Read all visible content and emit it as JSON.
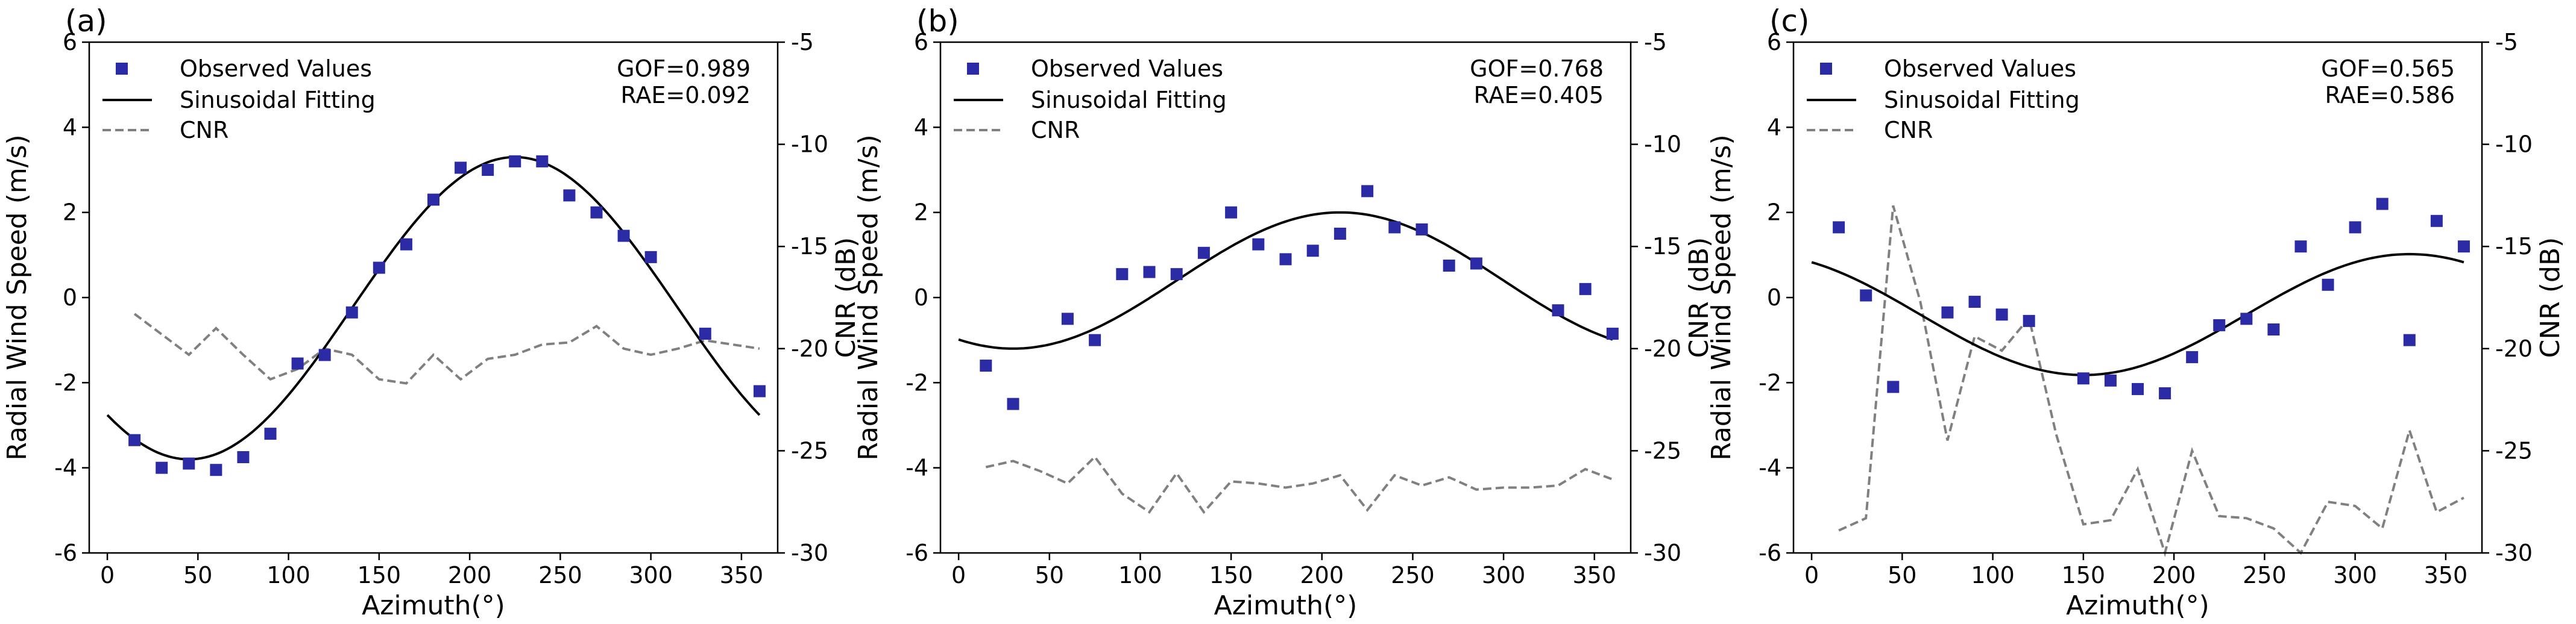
{
  "chart_data": [
    {
      "panel_label": "(a)",
      "type": "scatter",
      "xlabel": "Azimuth(°)",
      "ylabel": "Radial Wind Speed (m/s)",
      "y2label": "CNR (dB)",
      "xlim": [
        -10,
        370
      ],
      "ylim": [
        -6,
        6
      ],
      "y2lim": [
        -30,
        -5
      ],
      "xticks": [
        0,
        50,
        100,
        150,
        200,
        250,
        300,
        350
      ],
      "yticks": [
        -6,
        -4,
        -2,
        0,
        2,
        4,
        6
      ],
      "y2ticks": [
        -30,
        -25,
        -20,
        -15,
        -10,
        -5
      ],
      "legend": {
        "observed": "Observed Values",
        "fit": "Sinusoidal Fitting",
        "cnr": "CNR"
      },
      "stats": {
        "gof": "GOF=0.989",
        "rae": "RAE=0.092"
      },
      "observed": {
        "x": [
          15,
          30,
          45,
          60,
          75,
          90,
          105,
          120,
          135,
          150,
          165,
          180,
          195,
          210,
          225,
          240,
          255,
          270,
          285,
          300,
          330,
          360
        ],
        "y": [
          -3.35,
          -4.0,
          -3.9,
          -4.05,
          -3.75,
          -3.2,
          -1.55,
          -1.35,
          -0.35,
          0.7,
          1.25,
          2.3,
          3.05,
          3.0,
          3.2,
          3.2,
          2.4,
          2.0,
          1.45,
          0.95,
          -0.85,
          -2.2
        ]
      },
      "fit": {
        "offset": -0.25,
        "amplitude": 3.55,
        "peak_azimuth": 225
      },
      "cnr": {
        "x": [
          15,
          30,
          45,
          60,
          75,
          90,
          105,
          120,
          135,
          150,
          165,
          180,
          195,
          210,
          225,
          240,
          255,
          270,
          285,
          300,
          315,
          330,
          345,
          360
        ],
        "y": [
          -18.3,
          -19.3,
          -20.3,
          -19.0,
          -20.3,
          -21.5,
          -21.0,
          -20.0,
          -20.3,
          -21.5,
          -21.7,
          -20.3,
          -21.5,
          -20.5,
          -20.3,
          -19.8,
          -19.7,
          -18.9,
          -20.0,
          -20.3,
          -20.0,
          -19.6,
          -19.8,
          -20.0
        ]
      }
    },
    {
      "panel_label": "(b)",
      "type": "scatter",
      "xlabel": "Azimuth(°)",
      "ylabel": "Radial Wind Speed (m/s)",
      "y2label": "CNR (dB)",
      "xlim": [
        -10,
        370
      ],
      "ylim": [
        -6,
        6
      ],
      "y2lim": [
        -30,
        -5
      ],
      "xticks": [
        0,
        50,
        100,
        150,
        200,
        250,
        300,
        350
      ],
      "yticks": [
        -6,
        -4,
        -2,
        0,
        2,
        4,
        6
      ],
      "y2ticks": [
        -30,
        -25,
        -20,
        -15,
        -10,
        -5
      ],
      "legend": {
        "observed": "Observed Values",
        "fit": "Sinusoidal Fitting",
        "cnr": "CNR"
      },
      "stats": {
        "gof": "GOF=0.768",
        "rae": "RAE=0.405"
      },
      "observed": {
        "x": [
          15,
          30,
          60,
          75,
          90,
          105,
          120,
          135,
          150,
          165,
          180,
          195,
          210,
          225,
          240,
          255,
          270,
          285,
          330,
          345,
          360
        ],
        "y": [
          -1.6,
          -2.5,
          -0.5,
          -1.0,
          0.55,
          0.6,
          0.55,
          1.05,
          2.0,
          1.25,
          0.9,
          1.1,
          1.5,
          2.5,
          1.65,
          1.6,
          0.75,
          0.8,
          -0.3,
          0.2,
          -0.85
        ]
      },
      "fit": {
        "offset": 0.4,
        "amplitude": 1.6,
        "peak_azimuth": 210
      },
      "cnr": {
        "x": [
          15,
          30,
          45,
          60,
          75,
          90,
          105,
          120,
          135,
          150,
          165,
          180,
          195,
          210,
          225,
          240,
          255,
          270,
          285,
          300,
          315,
          330,
          345,
          360
        ],
        "y": [
          -25.8,
          -25.5,
          -26.0,
          -26.6,
          -25.3,
          -27.1,
          -28.0,
          -26.1,
          -28.0,
          -26.5,
          -26.6,
          -26.8,
          -26.6,
          -26.2,
          -27.9,
          -26.2,
          -26.7,
          -26.3,
          -26.9,
          -26.8,
          -26.8,
          -26.7,
          -25.9,
          -26.4
        ]
      }
    },
    {
      "panel_label": "(c)",
      "type": "scatter",
      "xlabel": "Azimuth(°)",
      "ylabel": "Radial Wind Speed (m/s)",
      "y2label": "CNR (dB)",
      "xlim": [
        -10,
        370
      ],
      "ylim": [
        -6,
        6
      ],
      "y2lim": [
        -30,
        -5
      ],
      "xticks": [
        0,
        50,
        100,
        150,
        200,
        250,
        300,
        350
      ],
      "yticks": [
        -6,
        -4,
        -2,
        0,
        2,
        4,
        6
      ],
      "y2ticks": [
        -30,
        -25,
        -20,
        -15,
        -10,
        -5
      ],
      "legend": {
        "observed": "Observed Values",
        "fit": "Sinusoidal Fitting",
        "cnr": "CNR"
      },
      "stats": {
        "gof": "GOF=0.565",
        "rae": "RAE=0.586"
      },
      "observed": {
        "x": [
          15,
          30,
          45,
          75,
          90,
          105,
          120,
          150,
          165,
          180,
          195,
          210,
          225,
          240,
          255,
          270,
          285,
          300,
          315,
          330,
          345,
          360
        ],
        "y": [
          1.65,
          0.05,
          -2.1,
          -0.35,
          -0.1,
          -0.4,
          -0.55,
          -1.9,
          -1.95,
          -2.15,
          -2.25,
          -1.4,
          -0.65,
          -0.5,
          -0.75,
          1.2,
          0.3,
          1.65,
          2.2,
          -1.0,
          1.8,
          1.2
        ]
      },
      "fit": {
        "offset": -0.4,
        "amplitude": 1.42,
        "peak_azimuth": 330
      },
      "cnr": {
        "x": [
          15,
          30,
          45,
          60,
          75,
          90,
          105,
          120,
          135,
          150,
          165,
          180,
          195,
          210,
          225,
          240,
          255,
          270,
          285,
          300,
          315,
          330,
          345,
          360
        ],
        "y": [
          -28.9,
          -28.3,
          -13.0,
          -17.7,
          -24.5,
          -19.4,
          -20.1,
          -18.5,
          -24.2,
          -28.6,
          -28.4,
          -25.9,
          -30.0,
          -25.0,
          -28.2,
          -28.3,
          -28.8,
          -30.0,
          -27.5,
          -27.7,
          -28.8,
          -24.0,
          -28.0,
          -27.3
        ]
      }
    }
  ]
}
